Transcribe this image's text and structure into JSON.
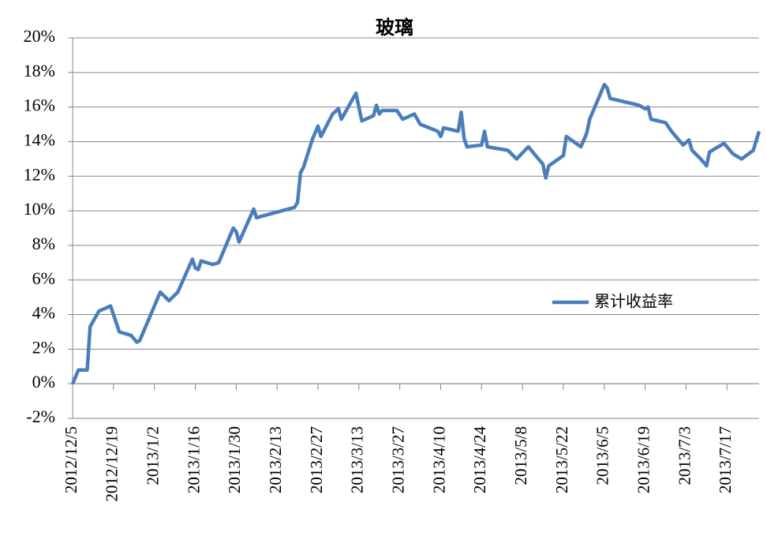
{
  "chart_data": {
    "type": "line",
    "title": "玻璃",
    "x": [
      "2012/12/5",
      "2012/12/7",
      "2012/12/10",
      "2012/12/11",
      "2012/12/14",
      "2012/12/18",
      "2012/12/21",
      "2012/12/25",
      "2012/12/27",
      "2012/12/28",
      "2013/1/4",
      "2013/1/7",
      "2013/1/10",
      "2013/1/15",
      "2013/1/16",
      "2013/1/17",
      "2013/1/18",
      "2013/1/22",
      "2013/1/24",
      "2013/1/29",
      "2013/1/30",
      "2013/1/31",
      "2013/2/5",
      "2013/2/6",
      "2013/2/8",
      "2013/2/19",
      "2013/2/20",
      "2013/2/21",
      "2013/2/22",
      "2013/2/25",
      "2013/2/27",
      "2013/2/28",
      "2013/3/4",
      "2013/3/6",
      "2013/3/7",
      "2013/3/12",
      "2013/3/14",
      "2013/3/18",
      "2013/3/19",
      "2013/3/20",
      "2013/3/21",
      "2013/3/26",
      "2013/3/28",
      "2013/4/1",
      "2013/4/3",
      "2013/4/9",
      "2013/4/10",
      "2013/4/11",
      "2013/4/16",
      "2013/4/17",
      "2013/4/18",
      "2013/4/19",
      "2013/4/24",
      "2013/4/25",
      "2013/4/26",
      "2013/5/3",
      "2013/5/6",
      "2013/5/10",
      "2013/5/13",
      "2013/5/15",
      "2013/5/16",
      "2013/5/17",
      "2013/5/22",
      "2013/5/23",
      "2013/5/28",
      "2013/5/30",
      "2013/5/31",
      "2013/6/5",
      "2013/6/6",
      "2013/6/7",
      "2013/6/17",
      "2013/6/19",
      "2013/6/20",
      "2013/6/21",
      "2013/6/26",
      "2013/6/28",
      "2013/7/2",
      "2013/7/4",
      "2013/7/5",
      "2013/7/8",
      "2013/7/10",
      "2013/7/11",
      "2013/7/16",
      "2013/7/19",
      "2013/7/22",
      "2013/7/26",
      "2013/7/28"
    ],
    "series": [
      {
        "name": "累计收益率",
        "color": "#4a7ebb",
        "values": [
          0,
          0.8,
          0.8,
          3.3,
          4.2,
          4.5,
          3.0,
          2.8,
          2.4,
          2.5,
          5.3,
          4.8,
          5.3,
          7.2,
          6.7,
          6.6,
          7.1,
          6.9,
          7.0,
          9.0,
          8.8,
          8.2,
          10.1,
          9.6,
          9.7,
          10.2,
          10.5,
          12.2,
          12.5,
          14.1,
          14.9,
          14.3,
          15.6,
          15.9,
          15.3,
          16.8,
          15.2,
          15.5,
          16.1,
          15.6,
          15.8,
          15.8,
          15.3,
          15.6,
          15.0,
          14.6,
          14.3,
          14.8,
          14.6,
          15.7,
          14.2,
          13.7,
          13.8,
          14.6,
          13.7,
          13.5,
          13.0,
          13.7,
          13.1,
          12.7,
          11.9,
          12.6,
          13.2,
          14.3,
          13.7,
          14.5,
          15.3,
          17.3,
          17.1,
          16.5,
          16.1,
          15.9,
          16.0,
          15.3,
          15.1,
          14.6,
          13.8,
          14.1,
          13.5,
          13.0,
          12.6,
          13.4,
          13.9,
          13.3,
          13.0,
          13.5,
          14.6
        ]
      }
    ],
    "xlim": [
      "2012/12/5",
      "2013/7/28"
    ],
    "xticks": [
      "2012/12/5",
      "2012/12/19",
      "2013/1/2",
      "2013/1/16",
      "2013/1/30",
      "2013/2/13",
      "2013/2/27",
      "2013/3/13",
      "2013/3/27",
      "2013/4/10",
      "2013/4/24",
      "2013/5/8",
      "2013/5/22",
      "2013/6/5",
      "2013/6/19",
      "2013/7/3",
      "2013/7/17"
    ],
    "ylim": [
      -2,
      20
    ],
    "yticks": [
      {
        "value": -2,
        "label": "-2%"
      },
      {
        "value": 0,
        "label": "0%"
      },
      {
        "value": 2,
        "label": "2%"
      },
      {
        "value": 4,
        "label": "4%"
      },
      {
        "value": 6,
        "label": "6%"
      },
      {
        "value": 8,
        "label": "8%"
      },
      {
        "value": 10,
        "label": "10%"
      },
      {
        "value": 12,
        "label": "12%"
      },
      {
        "value": 14,
        "label": "14%"
      },
      {
        "value": 16,
        "label": "16%"
      },
      {
        "value": 18,
        "label": "18%"
      },
      {
        "value": 20,
        "label": "20%"
      }
    ],
    "grid": true,
    "legend": "right"
  }
}
